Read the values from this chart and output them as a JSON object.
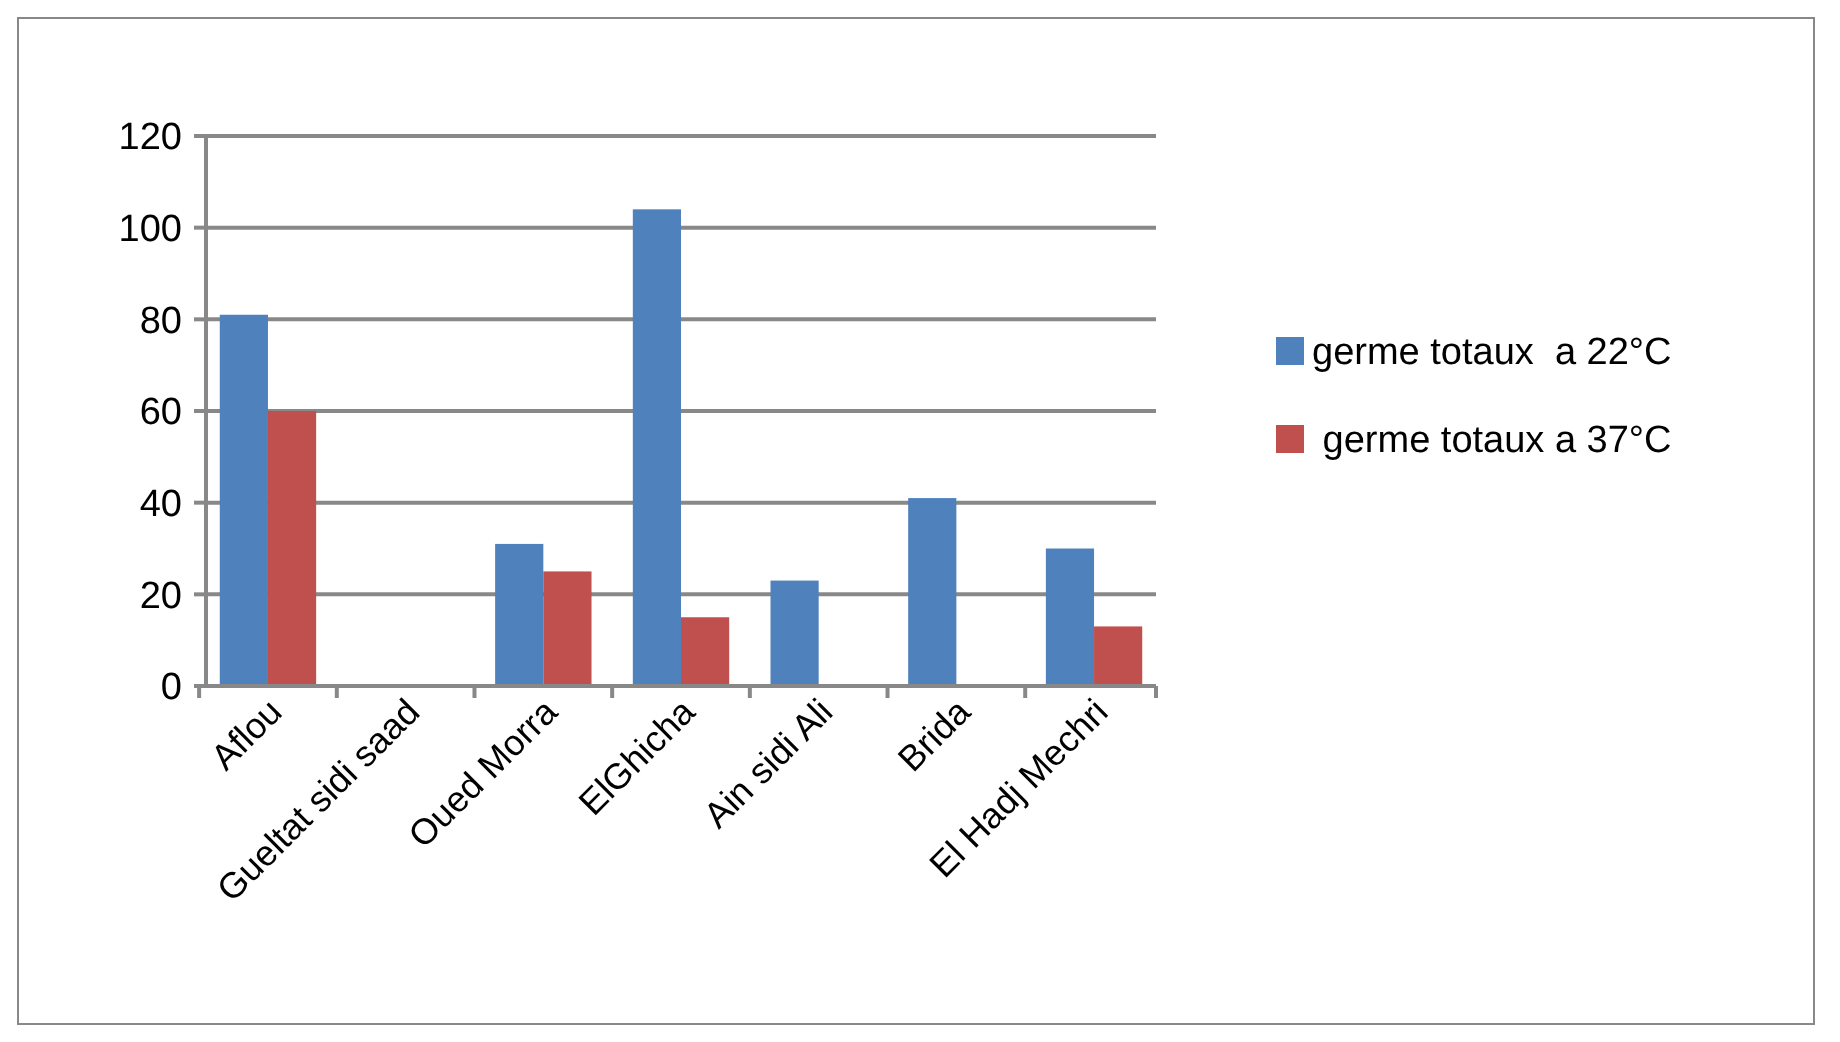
{
  "chart_data": {
    "type": "bar",
    "categories": [
      "Aflou",
      "Gueltat sidi saad",
      "Oued Morra",
      "ElGhicha",
      "Ain sidi Ali",
      "Brida",
      "El Hadj Mechri"
    ],
    "series": [
      {
        "name": "germe totaux  a 22°C",
        "color": "#4f81bd",
        "values": [
          81,
          0,
          31,
          104,
          23,
          41,
          30
        ]
      },
      {
        "name": " germe totaux a 37°C",
        "color": "#c0504d",
        "values": [
          60,
          0,
          25,
          15,
          0,
          0,
          13
        ]
      }
    ],
    "ylim": [
      0,
      120
    ],
    "yticks": [
      0,
      20,
      40,
      60,
      80,
      100,
      120
    ],
    "grid": "y",
    "legend": "right"
  }
}
